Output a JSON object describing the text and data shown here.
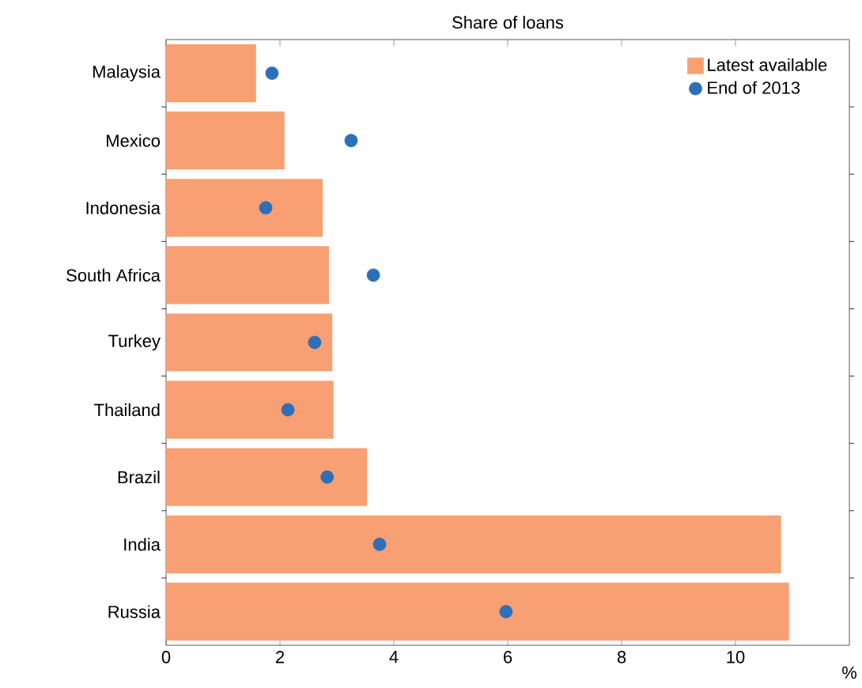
{
  "chart_data": {
    "type": "bar",
    "orientation": "horizontal",
    "title": "Share of loans",
    "xlabel": "%",
    "categories": [
      "Malaysia",
      "Mexico",
      "Indonesia",
      "South Africa",
      "Turkey",
      "Thailand",
      "Brazil",
      "India",
      "Russia"
    ],
    "series": [
      {
        "name": "Latest available",
        "color": "#f8a073",
        "values": [
          1.58,
          2.08,
          2.75,
          2.86,
          2.92,
          2.94,
          3.53,
          10.8,
          10.94
        ]
      },
      {
        "name": "End of 2013",
        "type": "scatter",
        "color": "#2e6fba",
        "values": [
          1.86,
          3.25,
          1.75,
          3.64,
          2.61,
          2.14,
          2.83,
          3.75,
          5.97
        ]
      }
    ],
    "xlim": [
      0,
      12
    ],
    "xticks": [
      0,
      2,
      4,
      6,
      8,
      10
    ],
    "legend": "top right",
    "grid": false
  }
}
